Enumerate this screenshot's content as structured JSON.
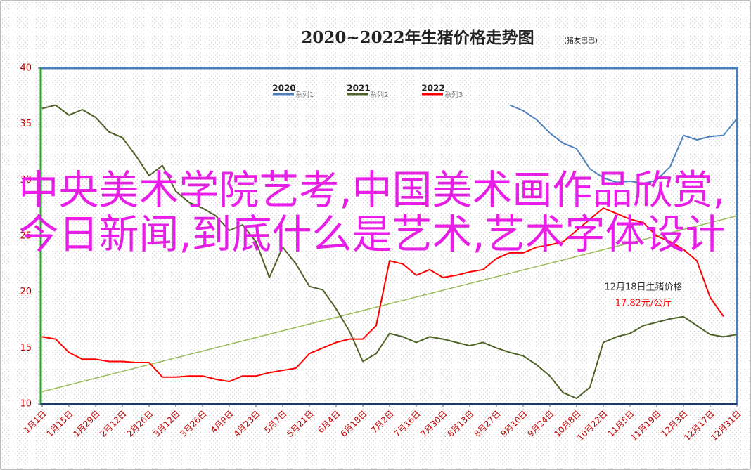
{
  "chart_data": {
    "type": "line",
    "title": "2020~2022年生猪价格走势图",
    "subtitle": "(猪友巴巴)",
    "categories": [
      "1月1日",
      null,
      "1月15日",
      null,
      "1月29日",
      null,
      "2月12日",
      null,
      "2月26日",
      null,
      "3月12日",
      null,
      "3月26日",
      null,
      "4月9日",
      null,
      "4月23日",
      null,
      "5月7日",
      null,
      "5月21日",
      null,
      "6月4日",
      null,
      "6月18日",
      null,
      "7月2日",
      null,
      "7月16日",
      null,
      "7月30日",
      null,
      "8月13日",
      null,
      "8月27日",
      null,
      "9月10日",
      null,
      "9月24日",
      null,
      "10月8日",
      null,
      "10月22日",
      null,
      "11月5日",
      null,
      "11月19日",
      null,
      "12月3日",
      null,
      "12月17日",
      null,
      "12月31日"
    ],
    "ylim": [
      10,
      40
    ],
    "yticks": [
      10,
      15,
      20,
      25,
      30,
      35,
      40
    ],
    "grid": false,
    "legend": "top",
    "series": [
      {
        "name": "2020",
        "legend_label": "系列1",
        "color": "#4f81bd",
        "values": [
          null,
          null,
          null,
          null,
          null,
          null,
          null,
          null,
          null,
          null,
          null,
          null,
          null,
          null,
          null,
          null,
          null,
          null,
          null,
          null,
          null,
          null,
          null,
          null,
          null,
          null,
          null,
          null,
          null,
          null,
          null,
          null,
          null,
          null,
          null,
          36.7,
          36.2,
          35.4,
          34.2,
          33.3,
          32.8,
          31.0,
          30.2,
          29.8,
          29.9,
          29.7,
          30.0,
          31.2,
          34.0,
          33.6,
          33.9,
          34.0,
          35.5
        ]
      },
      {
        "name": "2021",
        "legend_label": "系列2",
        "color": "#4f6228",
        "values": [
          36.4,
          36.7,
          35.8,
          36.3,
          35.6,
          34.3,
          33.8,
          32.2,
          30.4,
          31.3,
          29.0,
          28.0,
          27.5,
          26.8,
          25.5,
          26.0,
          24.5,
          21.3,
          24.0,
          22.5,
          20.5,
          20.2,
          18.5,
          16.5,
          13.8,
          14.5,
          16.3,
          16.0,
          15.5,
          16.0,
          15.8,
          15.5,
          15.2,
          15.5,
          15.0,
          14.6,
          14.3,
          13.5,
          12.5,
          11.0,
          10.5,
          11.5,
          15.5,
          16.0,
          16.3,
          17.0,
          17.3,
          17.6,
          17.8,
          17.0,
          16.2,
          16.0,
          16.2
        ]
      },
      {
        "name": "2022",
        "legend_label": "系列3",
        "color": "#ff0000",
        "values": [
          16.0,
          15.8,
          14.6,
          14.0,
          14.0,
          13.8,
          13.8,
          13.7,
          13.7,
          12.4,
          12.4,
          12.5,
          12.5,
          12.2,
          12.0,
          12.5,
          12.5,
          12.8,
          13.0,
          13.2,
          14.5,
          15.0,
          15.5,
          15.8,
          15.8,
          17.0,
          22.8,
          22.5,
          21.5,
          22.0,
          21.3,
          21.5,
          21.8,
          22.0,
          23.0,
          23.5,
          23.5,
          24.0,
          24.2,
          24.5,
          25.5,
          26.5,
          27.5,
          27.0,
          26.5,
          26.2,
          25.0,
          24.5,
          23.8,
          22.8,
          19.5,
          17.82,
          null
        ]
      }
    ],
    "trendline": {
      "color": "#9bbb59",
      "values": [
        11.1,
        26.8
      ]
    },
    "annotation": {
      "line1": "12月18日生猪价格",
      "line2": "17.82元/公斤",
      "line2_color": "#ff0000"
    },
    "overlay_text": "中央美术学院艺考,中国美术画作品欣赏,今日新闻,到底什么是艺术,艺术字体设计",
    "overlay_color": "#e61ee6"
  }
}
